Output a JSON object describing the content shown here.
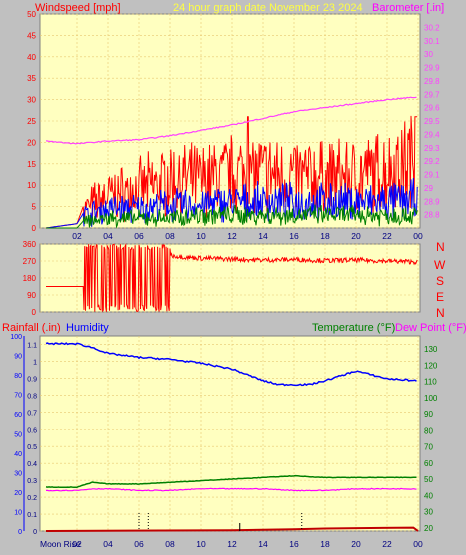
{
  "header": {
    "windspeed_label": "Windspeed [mph]",
    "graph_date": "24 hour graph date   November 23 2024",
    "barometer_label": "Barometer [.in]"
  },
  "lower_header": {
    "rainfall_label": "Rainfall (.in)",
    "humidity_label": "Humidity",
    "temperature_label": "Temperature (°F)",
    "dewpoint_label": "Dew Point (°F)"
  },
  "direction_labels": [
    "N",
    "W",
    "S",
    "E",
    "N"
  ],
  "moon_rise_label": "Moon Rise",
  "colors": {
    "panel_bg": "#ffffc0",
    "frame": "#c0c0c0",
    "grid": "#e8c870",
    "wind_speed": "#ff0000",
    "wind_avg": "#0000ff",
    "wind_low": "#008000",
    "barometer": "#ff40ff",
    "direction": "#ff0000",
    "humidity": "#0000ff",
    "temperature": "#008000",
    "dewpoint": "#ff00ff",
    "rain": "#c00000",
    "axis_text": "#000080"
  },
  "chart_data": [
    {
      "type": "line",
      "name": "wind-barometer",
      "x_ticks": [
        "02",
        "04",
        "06",
        "08",
        "10",
        "12",
        "14",
        "16",
        "18",
        "20",
        "22",
        "00"
      ],
      "left_axis": {
        "label": "Windspeed [mph]",
        "ylim": [
          0,
          50
        ],
        "ticks": [
          0,
          5,
          10,
          15,
          20,
          25,
          30,
          35,
          40,
          45,
          50
        ]
      },
      "right_axis": {
        "label": "Barometer [.in]",
        "ylim": [
          28.7,
          30.3
        ],
        "ticks": [
          "28.8",
          "28.9",
          "29",
          "29.1",
          "29.2",
          "29.3",
          "29.4",
          "29.5",
          "29.6",
          "29.7",
          "29.8",
          "29.9",
          "30",
          "30.1",
          "30.2"
        ]
      },
      "barometer": {
        "x": [
          0,
          2,
          4,
          6,
          8,
          10,
          12,
          14,
          16,
          18,
          20,
          22,
          24
        ],
        "values": [
          29.35,
          29.33,
          29.35,
          29.36,
          29.39,
          29.43,
          29.47,
          29.52,
          29.57,
          29.6,
          29.63,
          29.66,
          29.68
        ]
      },
      "wind_gust_envelope": {
        "x": [
          0,
          2,
          2.5,
          4,
          6,
          8,
          10,
          12,
          14,
          16,
          18,
          20,
          22,
          24
        ],
        "values": [
          0,
          1,
          6,
          10,
          12,
          15,
          15,
          17,
          17,
          16,
          16,
          16,
          18,
          22
        ]
      },
      "wind_avg_envelope": {
        "x": [
          0,
          2,
          2.5,
          4,
          6,
          8,
          10,
          12,
          14,
          16,
          18,
          20,
          22,
          24
        ],
        "values": [
          0,
          1,
          4,
          6,
          6,
          7,
          7,
          8,
          8,
          8,
          8,
          8,
          8,
          9
        ]
      },
      "wind_low_envelope": {
        "x": [
          0,
          2,
          2.5,
          4,
          6,
          8,
          10,
          12,
          14,
          16,
          18,
          20,
          22,
          24
        ],
        "values": [
          0,
          0,
          2,
          3,
          3,
          3,
          4,
          4,
          4,
          4,
          4,
          4,
          4,
          4
        ]
      }
    },
    {
      "type": "line",
      "name": "wind-direction",
      "x_ticks": [
        "02",
        "04",
        "06",
        "08",
        "10",
        "12",
        "14",
        "16",
        "18",
        "20",
        "22",
        "00"
      ],
      "ylim": [
        0,
        360
      ],
      "ticks": [
        0,
        90,
        180,
        270,
        360
      ],
      "direction": {
        "x": [
          0,
          2.4,
          2.5,
          3,
          4,
          5,
          5.5,
          6,
          7,
          8,
          9,
          10,
          12,
          14,
          16,
          18,
          20,
          22,
          24
        ],
        "values": [
          135,
          135,
          340,
          20,
          340,
          30,
          335,
          25,
          340,
          300,
          290,
          285,
          280,
          275,
          278,
          272,
          275,
          270,
          265
        ]
      }
    },
    {
      "type": "line",
      "name": "humidity-temperature-rain",
      "x_ticks": [
        "02",
        "04",
        "06",
        "08",
        "10",
        "12",
        "14",
        "16",
        "18",
        "20",
        "22",
        "00"
      ],
      "humidity_axis": {
        "label": "Humidity",
        "ylim": [
          0,
          100
        ],
        "ticks": [
          0,
          10,
          20,
          30,
          40,
          50,
          60,
          70,
          80,
          90,
          100
        ]
      },
      "rain_axis": {
        "label": "Rainfall (.in)",
        "ylim": [
          0,
          1.15
        ],
        "ticks": [
          "0",
          "0.1",
          "0.2",
          "0.3",
          "0.4",
          "0.5",
          "0.6",
          "0.7",
          "0.8",
          "0.9",
          "1",
          "1.1"
        ]
      },
      "temp_axis": {
        "label": "Temperature (°F)",
        "ylim": [
          18,
          138
        ],
        "ticks": [
          20,
          30,
          40,
          50,
          60,
          70,
          80,
          90,
          100,
          110,
          120,
          130
        ]
      },
      "humidity": {
        "x": [
          0,
          2,
          3,
          4,
          6,
          8,
          10,
          12,
          13,
          14,
          15,
          16,
          17,
          18,
          20,
          22,
          24
        ],
        "values": [
          96,
          96,
          94,
          91,
          89,
          88,
          86,
          83,
          80,
          77,
          75,
          75,
          75,
          77,
          82,
          78,
          77
        ]
      },
      "temperature": {
        "x": [
          0,
          2,
          3,
          4,
          6,
          8,
          10,
          12,
          14,
          16,
          18,
          20,
          22,
          24
        ],
        "values": [
          45,
          45,
          48,
          47,
          47,
          48,
          49,
          50,
          51,
          52,
          51,
          51,
          51,
          51
        ]
      },
      "dewpoint": {
        "x": [
          0,
          2,
          3,
          4,
          6,
          8,
          10,
          12,
          14,
          16,
          18,
          20,
          22,
          24
        ],
        "values": [
          43,
          43,
          44,
          44,
          43,
          43,
          44,
          44,
          44,
          43,
          43,
          44,
          44,
          44
        ]
      },
      "rainfall": {
        "x": [
          0,
          12,
          16,
          18,
          23.7,
          24
        ],
        "values": [
          0,
          0.005,
          0.01,
          0.015,
          0.02,
          0
        ]
      },
      "moon_markers": [
        6,
        6.6,
        16.5
      ],
      "sun_marker": 12.5
    }
  ]
}
